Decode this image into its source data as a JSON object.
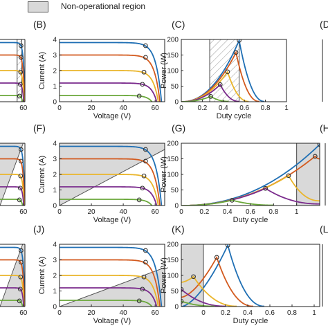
{
  "legend": {
    "label": "Non-operational region",
    "fill": "#d9d9d9",
    "stroke": "#555555"
  },
  "colors": {
    "series": [
      "#1f6fb4",
      "#d35a1e",
      "#eab52a",
      "#7a2a8c",
      "#6aa83a"
    ],
    "marker": "#333333",
    "region_fill": "#d9d9d9",
    "hatch_stroke": "#9a9a9a"
  },
  "chart_data": [
    {
      "id": "A",
      "panel_label": "",
      "partial": true,
      "type": "line",
      "x": {
        "min": 0,
        "max": 64,
        "ticks": [
          60
        ],
        "label": ""
      },
      "y": {
        "min": 0,
        "max": 4,
        "ticks": [],
        "label": ""
      },
      "curve": "iv",
      "series": [
        {
          "isc": 3.8,
          "voc": 64,
          "mpp": [
            54,
            3.6
          ]
        },
        {
          "isc": 3.0,
          "voc": 63,
          "mpp": [
            54,
            2.85
          ]
        },
        {
          "isc": 2.0,
          "voc": 62,
          "mpp": [
            53,
            1.9
          ]
        },
        {
          "isc": 1.2,
          "voc": 61,
          "mpp": [
            52,
            1.12
          ]
        },
        {
          "isc": 0.4,
          "voc": 58,
          "mpp": [
            50,
            0.36
          ]
        }
      ],
      "region": {
        "type": "hatch",
        "x": [
          44,
          56
        ]
      }
    },
    {
      "id": "B",
      "panel_label": "(B)",
      "type": "line",
      "x": {
        "min": 0,
        "max": 66,
        "ticks": [
          0,
          20,
          40,
          60
        ],
        "label": "Voltage (V)"
      },
      "y": {
        "min": 0,
        "max": 4,
        "ticks": [
          0,
          1,
          2,
          3,
          4
        ],
        "label": "Current (A)"
      },
      "curve": "iv",
      "series": [
        {
          "isc": 3.8,
          "voc": 64,
          "mpp": [
            54,
            3.6
          ]
        },
        {
          "isc": 3.0,
          "voc": 63,
          "mpp": [
            54,
            2.85
          ]
        },
        {
          "isc": 2.0,
          "voc": 62,
          "mpp": [
            53,
            1.9
          ]
        },
        {
          "isc": 1.2,
          "voc": 61,
          "mpp": [
            52,
            1.12
          ]
        },
        {
          "isc": 0.4,
          "voc": 58,
          "mpp": [
            50,
            0.36
          ]
        }
      ]
    },
    {
      "id": "C",
      "panel_label": "(C)",
      "type": "line",
      "x": {
        "min": 0,
        "max": 1,
        "ticks": [
          0,
          0.2,
          0.4,
          0.6,
          0.8,
          1
        ],
        "label": "Duty cycle"
      },
      "y": {
        "min": 0,
        "max": 200,
        "ticks": [
          0,
          50,
          100,
          150,
          200
        ],
        "label": "Power (W)"
      },
      "curve": "pd",
      "series": [
        {
          "peak": [
            0.55,
            197
          ],
          "right": [
            0.79,
            0.94
          ]
        },
        {
          "peak": [
            0.52,
            158
          ],
          "right": [
            0.74,
            0.94
          ]
        },
        {
          "peak": [
            0.44,
            96
          ],
          "right": [
            0.64,
            0.94
          ]
        },
        {
          "peak": [
            0.37,
            55
          ],
          "right": [
            0.55,
            0.94
          ]
        },
        {
          "peak": [
            0.28,
            17
          ],
          "right": [
            0.45,
            0.94
          ]
        }
      ],
      "region": {
        "type": "hatch",
        "x": [
          0.27,
          0.55
        ]
      }
    },
    {
      "id": "D",
      "panel_label": "(D",
      "partial": true,
      "type": "line",
      "x": {
        "min": 0,
        "max": 1,
        "ticks": [],
        "label": ""
      },
      "y": {
        "min": 0,
        "max": 200,
        "ticks": [],
        "label": ""
      },
      "series": []
    },
    {
      "id": "E",
      "panel_label": "",
      "partial": true,
      "type": "line",
      "x": {
        "min": 0,
        "max": 64,
        "ticks": [
          60
        ],
        "label": ""
      },
      "y": {
        "min": 0,
        "max": 4,
        "ticks": [],
        "label": ""
      },
      "curve": "iv",
      "series": [
        {
          "isc": 3.8,
          "voc": 64,
          "mpp": [
            54,
            3.6
          ]
        },
        {
          "isc": 3.0,
          "voc": 63,
          "mpp": [
            54,
            2.85
          ]
        },
        {
          "isc": 2.0,
          "voc": 62,
          "mpp": [
            53,
            1.9
          ]
        },
        {
          "isc": 1.2,
          "voc": 61,
          "mpp": [
            52,
            1.12
          ]
        },
        {
          "isc": 0.4,
          "voc": 58,
          "mpp": [
            50,
            0.36
          ]
        }
      ],
      "region": {
        "type": "gray_above_line",
        "line": [
          [
            0,
            0
          ],
          [
            64,
            4.3
          ]
        ]
      }
    },
    {
      "id": "F",
      "panel_label": "(F)",
      "type": "line",
      "x": {
        "min": 0,
        "max": 66,
        "ticks": [
          0,
          20,
          40,
          60
        ],
        "label": "Voltage (V)"
      },
      "y": {
        "min": 0,
        "max": 4,
        "ticks": [
          0,
          1,
          2,
          3,
          4
        ],
        "label": "Current (A)"
      },
      "curve": "iv",
      "series": [
        {
          "isc": 3.8,
          "voc": 64,
          "mpp": [
            54,
            3.6
          ]
        },
        {
          "isc": 3.0,
          "voc": 63,
          "mpp": [
            54,
            2.85
          ]
        },
        {
          "isc": 2.0,
          "voc": 62,
          "mpp": [
            53,
            1.9
          ]
        },
        {
          "isc": 1.2,
          "voc": 61,
          "mpp": [
            52,
            1.12
          ]
        },
        {
          "isc": 0.4,
          "voc": 58,
          "mpp": [
            50,
            0.36
          ]
        }
      ],
      "region": {
        "type": "gray_above_line",
        "line": [
          [
            0,
            0
          ],
          [
            66,
            3.6
          ]
        ]
      }
    },
    {
      "id": "G",
      "panel_label": "(G)",
      "type": "line",
      "x": {
        "min": 0,
        "max": 1.2,
        "ticks": [
          0,
          0.2,
          0.4,
          0.6,
          0.8,
          1
        ],
        "label": "Duty cycle"
      },
      "y": {
        "min": 0,
        "max": 200,
        "ticks": [
          0,
          50,
          100,
          150,
          200
        ],
        "label": "Power (W)"
      },
      "curve": "pd",
      "series": [
        {
          "peak": [
            1.2,
            196
          ]
        },
        {
          "peak": [
            1.16,
            158
          ],
          "right": [
            1.2,
            150
          ]
        },
        {
          "peak": [
            0.93,
            96
          ],
          "right": [
            1.2,
            15
          ]
        },
        {
          "peak": [
            0.73,
            55
          ],
          "right": [
            1.2,
            5
          ]
        },
        {
          "peak": [
            0.44,
            17
          ],
          "right": [
            0.8,
            1
          ]
        }
      ],
      "region": {
        "type": "gray_x",
        "x": [
          1.0,
          1.2
        ]
      }
    },
    {
      "id": "H",
      "panel_label": "(H",
      "partial": true,
      "type": "line",
      "x": {
        "min": 0,
        "max": 1,
        "ticks": [],
        "label": ""
      },
      "y": {
        "min": 0,
        "max": 200,
        "ticks": [],
        "label": ""
      },
      "series": []
    },
    {
      "id": "I",
      "panel_label": "",
      "partial": true,
      "type": "line",
      "x": {
        "min": 0,
        "max": 64,
        "ticks": [
          60
        ],
        "label": ""
      },
      "y": {
        "min": 0,
        "max": 4,
        "ticks": [],
        "label": ""
      },
      "curve": "iv",
      "series": [
        {
          "isc": 3.8,
          "voc": 64,
          "mpp": [
            54,
            3.6
          ]
        },
        {
          "isc": 3.0,
          "voc": 63,
          "mpp": [
            54,
            2.85
          ]
        },
        {
          "isc": 2.0,
          "voc": 62,
          "mpp": [
            53,
            1.9
          ]
        },
        {
          "isc": 1.2,
          "voc": 61,
          "mpp": [
            52,
            1.12
          ]
        },
        {
          "isc": 0.4,
          "voc": 58,
          "mpp": [
            50,
            0.36
          ]
        }
      ],
      "region": {
        "type": "gray_below_line",
        "line": [
          [
            0,
            0
          ],
          [
            64,
            4.4
          ]
        ]
      }
    },
    {
      "id": "J",
      "panel_label": "(J)",
      "type": "line",
      "x": {
        "min": 0,
        "max": 66,
        "ticks": [
          0,
          20,
          40,
          60
        ],
        "label": "Voltage (V)"
      },
      "y": {
        "min": 0,
        "max": 4,
        "ticks": [
          0,
          1,
          2,
          3,
          4
        ],
        "label": "Current (A)"
      },
      "curve": "iv",
      "series": [
        {
          "isc": 3.8,
          "voc": 64,
          "mpp": [
            54,
            3.6
          ]
        },
        {
          "isc": 3.0,
          "voc": 63,
          "mpp": [
            54,
            2.85
          ]
        },
        {
          "isc": 2.0,
          "voc": 62,
          "mpp": [
            53,
            1.9
          ]
        },
        {
          "isc": 1.2,
          "voc": 61,
          "mpp": [
            52,
            1.12
          ]
        },
        {
          "isc": 0.4,
          "voc": 58,
          "mpp": [
            50,
            0.36
          ]
        }
      ],
      "region": {
        "type": "gray_below_line",
        "line": [
          [
            0,
            0
          ],
          [
            66,
            2.5
          ]
        ]
      }
    },
    {
      "id": "K",
      "panel_label": "(K)",
      "type": "line",
      "x": {
        "min": -0.2,
        "max": 1.05,
        "ticks": [
          0,
          0.2,
          0.4,
          0.6,
          0.8,
          1
        ],
        "label": "Duty cycle"
      },
      "y": {
        "min": 0,
        "max": 200,
        "ticks": [
          0,
          50,
          100,
          150,
          200
        ],
        "label": "Power (W)"
      },
      "curve": "pd_left",
      "series": [
        {
          "peak": [
            0.22,
            197
          ],
          "right": [
            0.55,
            0.98
          ],
          "left": [
            -0.2,
            0
          ]
        },
        {
          "peak": [
            0.12,
            158
          ],
          "right": [
            0.45,
            0.98
          ],
          "left": [
            -0.2,
            30
          ]
        },
        {
          "peak": [
            -0.09,
            96
          ],
          "right": [
            0.3,
            0.98
          ],
          "left": [
            -0.2,
            78
          ]
        },
        {
          "peak": [
            -0.2,
            55
          ],
          "right": [
            0.2,
            0.98
          ]
        },
        {
          "peak": [
            -0.2,
            17
          ],
          "right": [
            0.1,
            0.98
          ]
        }
      ],
      "region": {
        "type": "gray_x",
        "x": [
          -0.2,
          0.0
        ]
      }
    },
    {
      "id": "L",
      "panel_label": "(L",
      "partial": true,
      "type": "line",
      "x": {
        "min": 0,
        "max": 1,
        "ticks": [],
        "label": ""
      },
      "y": {
        "min": 0,
        "max": 200,
        "ticks": [],
        "label": ""
      },
      "series": []
    }
  ]
}
